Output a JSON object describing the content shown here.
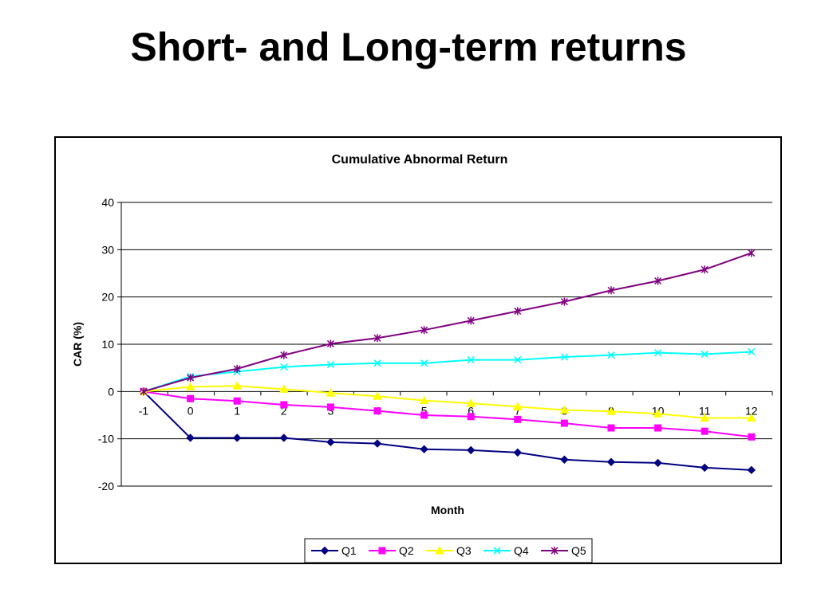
{
  "slide": {
    "title": "Short- and Long-term returns"
  },
  "chart_data": {
    "type": "line",
    "title": "Cumulative Abnormal Return",
    "xlabel": "Month",
    "ylabel": "CAR (%)",
    "ylim": [
      -20,
      40
    ],
    "y_ticks": [
      "-20",
      "-10",
      "0",
      "10",
      "20",
      "30",
      "40"
    ],
    "categories": [
      "-1",
      "0",
      "1",
      "2",
      "3",
      "4",
      "5",
      "6",
      "7",
      "8",
      "9",
      "10",
      "11",
      "12"
    ],
    "grid": "horizontal major gridlines",
    "legend_position": "bottom",
    "series": [
      {
        "name": "Q1",
        "color": "#000080",
        "marker": "diamond",
        "values": [
          0,
          -9.8,
          -9.8,
          -9.8,
          -10.7,
          -11.0,
          -12.2,
          -12.4,
          -12.9,
          -14.4,
          -14.9,
          -15.1,
          -16.1,
          -16.6
        ]
      },
      {
        "name": "Q2",
        "color": "#ff00ff",
        "marker": "square",
        "values": [
          0,
          -1.5,
          -2.0,
          -2.8,
          -3.3,
          -4.1,
          -5.0,
          -5.3,
          -5.9,
          -6.7,
          -7.7,
          -7.7,
          -8.4,
          -9.6
        ]
      },
      {
        "name": "Q3",
        "color": "#ffff00",
        "marker": "triangle",
        "values": [
          0,
          1.0,
          1.2,
          0.5,
          -0.3,
          -1.0,
          -1.9,
          -2.5,
          -3.2,
          -3.9,
          -4.2,
          -4.7,
          -5.6,
          -5.6
        ]
      },
      {
        "name": "Q4",
        "color": "#00ffff",
        "marker": "x",
        "values": [
          0,
          3.2,
          4.2,
          5.2,
          5.7,
          6.0,
          6.0,
          6.7,
          6.7,
          7.3,
          7.7,
          8.2,
          7.9,
          8.4
        ]
      },
      {
        "name": "Q5",
        "color": "#800080",
        "marker": "star",
        "values": [
          0,
          2.9,
          4.8,
          7.7,
          10.1,
          11.3,
          13.0,
          15.0,
          17.0,
          19.0,
          21.4,
          23.4,
          25.8,
          29.3
        ]
      }
    ]
  }
}
